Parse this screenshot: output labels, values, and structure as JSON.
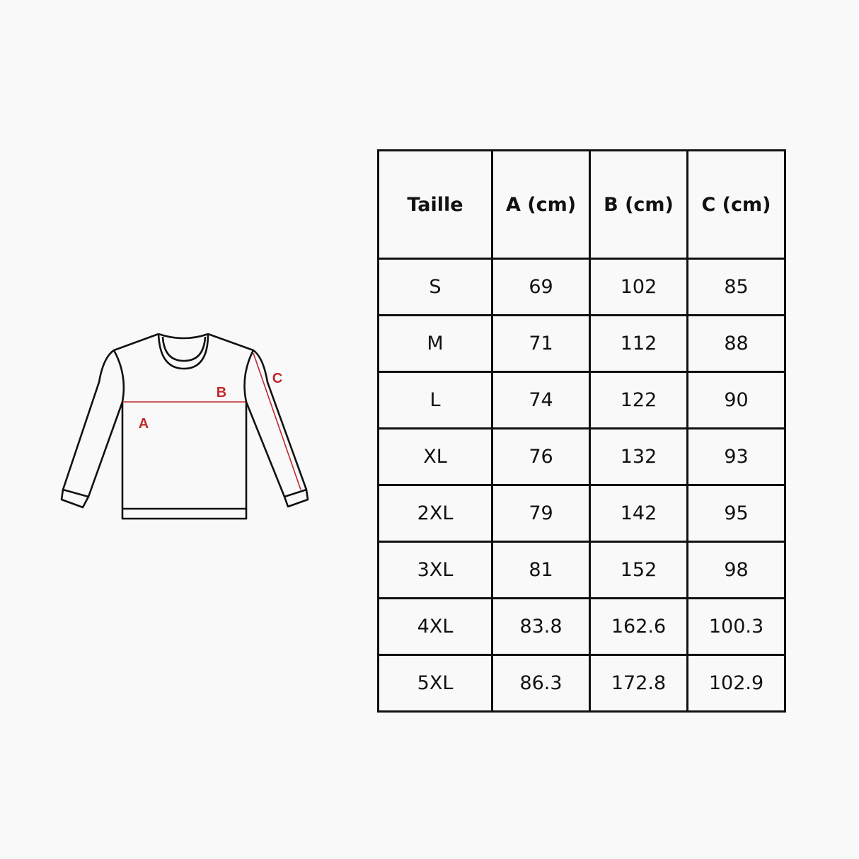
{
  "diagram": {
    "labels": {
      "a": "A",
      "b": "B",
      "c": "C"
    },
    "accent_color": "#c0282a"
  },
  "table": {
    "headers": [
      "Taille",
      "A (cm)",
      "B (cm)",
      "C (cm)"
    ],
    "rows": [
      [
        "S",
        "69",
        "102",
        "85"
      ],
      [
        "M",
        "71",
        "112",
        "88"
      ],
      [
        "L",
        "74",
        "122",
        "90"
      ],
      [
        "XL",
        "76",
        "132",
        "93"
      ],
      [
        "2XL",
        "79",
        "142",
        "95"
      ],
      [
        "3XL",
        "81",
        "152",
        "98"
      ],
      [
        "4XL",
        "83.8",
        "162.6",
        "100.3"
      ],
      [
        "5XL",
        "86.3",
        "172.8",
        "102.9"
      ]
    ]
  }
}
